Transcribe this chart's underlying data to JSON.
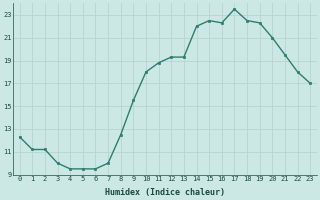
{
  "x": [
    0,
    1,
    2,
    3,
    4,
    5,
    6,
    7,
    8,
    9,
    10,
    11,
    12,
    13,
    14,
    15,
    16,
    17,
    18,
    19,
    20,
    21,
    22,
    23
  ],
  "y": [
    12.3,
    11.2,
    11.2,
    10.0,
    9.5,
    9.5,
    9.5,
    10.0,
    12.5,
    15.5,
    18.0,
    18.8,
    19.3,
    19.3,
    22.0,
    22.5,
    22.3,
    23.5,
    22.5,
    22.3,
    21.0,
    19.5,
    18.0,
    17.0
  ],
  "line_color": "#2e7d6e",
  "marker": "s",
  "markersize": 1.8,
  "linewidth": 1.0,
  "xlabel": "Humidex (Indice chaleur)",
  "ylim": [
    9,
    24
  ],
  "yticks": [
    9,
    11,
    13,
    15,
    17,
    19,
    21,
    23
  ],
  "ytick_labels": [
    "9",
    "11",
    "13",
    "15",
    "17",
    "19",
    "21",
    "23"
  ],
  "xticks": [
    0,
    1,
    2,
    3,
    4,
    5,
    6,
    7,
    8,
    9,
    10,
    11,
    12,
    13,
    14,
    15,
    16,
    17,
    18,
    19,
    20,
    21,
    22,
    23
  ],
  "xtick_labels": [
    "0",
    "1",
    "2",
    "3",
    "4",
    "5",
    "6",
    "7",
    "8",
    "9",
    "10",
    "11",
    "12",
    "13",
    "14",
    "15",
    "16",
    "17",
    "18",
    "19",
    "20",
    "21",
    "22",
    "23"
  ],
  "bg_color": "#cce8e5",
  "grid_color": "#b8d4d0",
  "xlabel_color": "#1a4a40",
  "tick_color": "#1a4a40",
  "font_family": "monospace",
  "xlabel_fontsize": 6.0,
  "tick_fontsize": 5.0
}
